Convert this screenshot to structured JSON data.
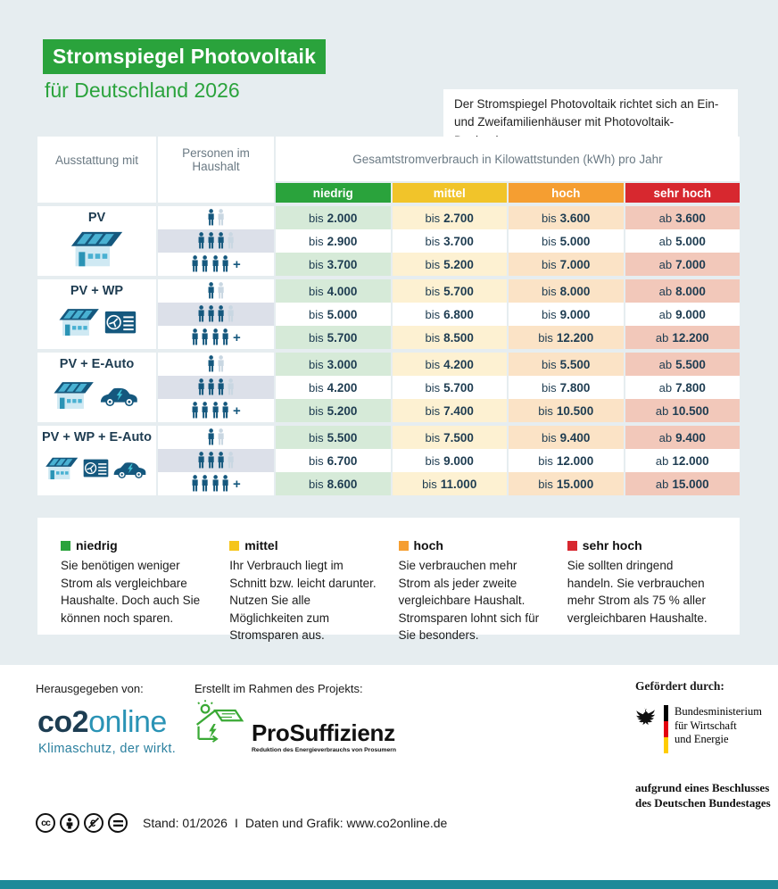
{
  "page": {
    "title": "Stromspiegel Photovoltaik",
    "subtitle": "für Deutschland 2026",
    "note": "Der Stromspiegel Photovoltaik richtet sich an Ein- und Zweifamilienhäuser mit Photovoltaik-Dachanlage."
  },
  "table": {
    "headers": {
      "equipment": "Ausstattung mit",
      "persons": "Personen im Haushalt",
      "consumption": "Gesamtstromverbrauch in Kilowattstunden (kWh) pro Jahr"
    },
    "levels": [
      {
        "id": "niedrig",
        "label": "niedrig",
        "color": "#2aa33c",
        "tint": "#d6ead8"
      },
      {
        "id": "mittel",
        "label": "mittel",
        "color": "#f1c42a",
        "tint": "#fdf1d2"
      },
      {
        "id": "hoch",
        "label": "hoch",
        "color": "#f59e31",
        "tint": "#fbe3c6"
      },
      {
        "id": "sehr-hoch",
        "label": "sehr hoch",
        "color": "#d7282f",
        "tint": "#f2c8ba"
      }
    ],
    "person_rows": [
      {
        "label": "1-2 Personen",
        "dark": 1,
        "light": 1,
        "plus": false
      },
      {
        "label": "3-4 Personen",
        "dark": 3,
        "light": 1,
        "plus": false
      },
      {
        "label": "5 und mehr Personen",
        "dark": 4,
        "light": 0,
        "plus": true
      }
    ],
    "groups": [
      {
        "label": "PV",
        "icons": [
          "house-pv"
        ],
        "rows": [
          [
            "bis 2.000",
            "bis 2.700",
            "bis 3.600",
            "ab 3.600"
          ],
          [
            "bis 2.900",
            "bis 3.700",
            "bis 5.000",
            "ab 5.000"
          ],
          [
            "bis 3.700",
            "bis 5.200",
            "bis 7.000",
            "ab 7.000"
          ]
        ]
      },
      {
        "label": "PV + WP",
        "icons": [
          "house-pv",
          "heat-pump"
        ],
        "rows": [
          [
            "bis 4.000",
            "bis 5.700",
            "bis 8.000",
            "ab 8.000"
          ],
          [
            "bis 5.000",
            "bis 6.800",
            "bis 9.000",
            "ab 9.000"
          ],
          [
            "bis 5.700",
            "bis 8.500",
            "bis 12.200",
            "ab 12.200"
          ]
        ]
      },
      {
        "label": "PV + E-Auto",
        "icons": [
          "house-pv",
          "e-car"
        ],
        "rows": [
          [
            "bis 3.000",
            "bis 4.200",
            "bis 5.500",
            "ab 5.500"
          ],
          [
            "bis 4.200",
            "bis 5.700",
            "bis 7.800",
            "ab 7.800"
          ],
          [
            "bis 5.200",
            "bis 7.400",
            "bis 10.500",
            "ab 10.500"
          ]
        ]
      },
      {
        "label": "PV + WP + E-Auto",
        "icons": [
          "house-pv",
          "heat-pump",
          "e-car"
        ],
        "rows": [
          [
            "bis 5.500",
            "bis 7.500",
            "bis 9.400",
            "ab 9.400"
          ],
          [
            "bis 6.700",
            "bis 9.000",
            "bis 12.000",
            "ab 12.000"
          ],
          [
            "bis 8.600",
            "bis 11.000",
            "bis 15.000",
            "ab 15.000"
          ]
        ]
      }
    ]
  },
  "legend": [
    {
      "label": "niedrig",
      "color": "#2aa33c",
      "text": "Sie benötigen weniger Strom als vergleichbare Haushalte. Doch auch Sie können noch sparen."
    },
    {
      "label": "mittel",
      "color": "#f5c51b",
      "text": "Ihr Verbrauch liegt im Schnitt bzw. leicht darunter. Nutzen Sie alle Möglichkeiten zum Stromsparen aus."
    },
    {
      "label": "hoch",
      "color": "#f59e31",
      "text": "Sie verbrauchen mehr Strom als jeder zweite vergleichbare Haushalt. Stromsparen lohnt sich für Sie besonders."
    },
    {
      "label": "sehr hoch",
      "color": "#d7282f",
      "text": "Sie sollten dringend handeln. Sie verbrauchen mehr Strom als 75 % aller vergleichbaren Haushalte."
    }
  ],
  "footer": {
    "published_label": "Herausgegeben von:",
    "publisher_logo": {
      "part1": "co2",
      "part2": "online",
      "tagline": "Klimaschutz, der wirkt."
    },
    "project_label": "Erstellt im Rahmen des Projekts:",
    "project_logo": {
      "name": "ProSuffizienz",
      "subtitle": "Reduktion des Energieverbrauchs von Prosumern"
    },
    "funded_label": "Gefördert durch:",
    "funder": {
      "line1": "Bundesministerium",
      "line2": "für Wirtschaft",
      "line3": "und Energie",
      "note1": "aufgrund eines Beschlusses",
      "note2": "des Deutschen Bundestages",
      "flag_colors": [
        "#000000",
        "#e3000f",
        "#ffcc00"
      ]
    },
    "license_icons": [
      "cc",
      "attribution",
      "nc-eu",
      "nd"
    ],
    "stand_line": "Stand: 01/2026",
    "separator": "I",
    "credit_line": "Daten und Grafik: www.co2online.de"
  },
  "chart_data": {
    "type": "table",
    "title": "Stromspiegel Photovoltaik für Deutschland 2026",
    "unit": "kWh pro Jahr",
    "columns": [
      "Ausstattung mit",
      "Personen im Haushalt",
      "niedrig",
      "mittel",
      "hoch",
      "sehr hoch"
    ],
    "rows": [
      [
        "PV",
        "1-2",
        "bis 2.000",
        "bis 2.700",
        "bis 3.600",
        "ab 3.600"
      ],
      [
        "PV",
        "3-4",
        "bis 2.900",
        "bis 3.700",
        "bis 5.000",
        "ab 5.000"
      ],
      [
        "PV",
        "5+",
        "bis 3.700",
        "bis 5.200",
        "bis 7.000",
        "ab 7.000"
      ],
      [
        "PV + WP",
        "1-2",
        "bis 4.000",
        "bis 5.700",
        "bis 8.000",
        "ab 8.000"
      ],
      [
        "PV + WP",
        "3-4",
        "bis 5.000",
        "bis 6.800",
        "bis 9.000",
        "ab 9.000"
      ],
      [
        "PV + WP",
        "5+",
        "bis 5.700",
        "bis 8.500",
        "bis 12.200",
        "ab 12.200"
      ],
      [
        "PV + E-Auto",
        "1-2",
        "bis 3.000",
        "bis 4.200",
        "bis 5.500",
        "ab 5.500"
      ],
      [
        "PV + E-Auto",
        "3-4",
        "bis 4.200",
        "bis 5.700",
        "bis 7.800",
        "ab 7.800"
      ],
      [
        "PV + E-Auto",
        "5+",
        "bis 5.200",
        "bis 7.400",
        "bis 10.500",
        "ab 10.500"
      ],
      [
        "PV + WP + E-Auto",
        "1-2",
        "bis 5.500",
        "bis 7.500",
        "bis 9.400",
        "ab 9.400"
      ],
      [
        "PV + WP + E-Auto",
        "3-4",
        "bis 6.700",
        "bis 9.000",
        "bis 12.000",
        "ab 12.000"
      ],
      [
        "PV + WP + E-Auto",
        "5+",
        "bis 8.600",
        "bis 11.000",
        "bis 15.000",
        "ab 15.000"
      ]
    ]
  }
}
